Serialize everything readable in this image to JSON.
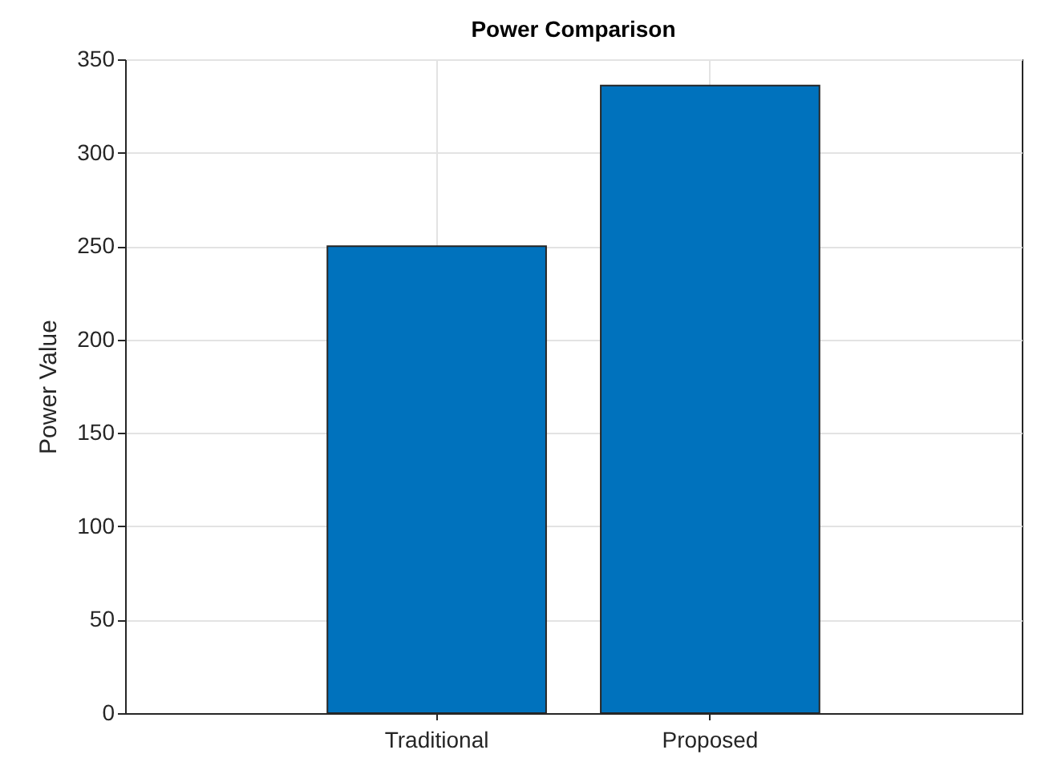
{
  "chart_data": {
    "type": "bar",
    "title": "Power Comparison",
    "ylabel": "Power Value",
    "categories": [
      "Traditional",
      "Proposed"
    ],
    "values": [
      250,
      336
    ],
    "color": "#0072bd",
    "ylim": [
      0,
      350
    ],
    "yticks": [
      0,
      50,
      100,
      150,
      200,
      250,
      300,
      350
    ],
    "grid": true
  }
}
